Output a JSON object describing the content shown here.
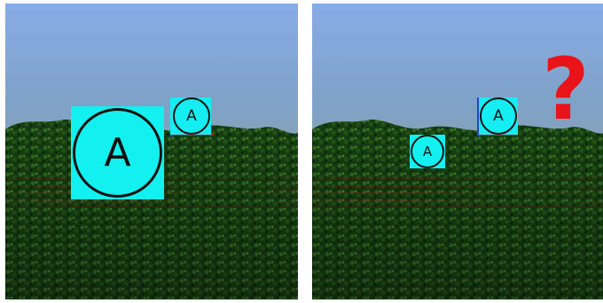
{
  "panels": [
    {
      "id": "left",
      "badges": [
        {
          "label": "A",
          "size": "large"
        },
        {
          "label": "A",
          "size": "small"
        }
      ]
    },
    {
      "id": "right",
      "badges": [
        {
          "label": "A",
          "size": "small"
        },
        {
          "label": "A",
          "size": "small"
        }
      ],
      "symbol": "?"
    }
  ],
  "colors": {
    "badge_fill": "#12f0f0",
    "question_mark": "#e8141a",
    "foliage_dark": "#0b2a0d",
    "foliage_light": "#2e7a1f"
  }
}
